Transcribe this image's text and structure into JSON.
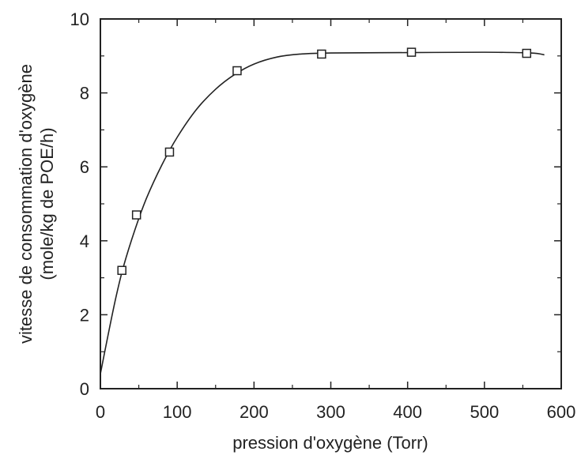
{
  "chart_data": {
    "type": "scatter",
    "title": "",
    "xlabel": "pression d'oxygène (Torr)",
    "ylabel_line1": "vitesse de consommation d'oxygène",
    "ylabel_line2": "(mole/kg de POE/h)",
    "xlim": [
      0,
      600
    ],
    "ylim": [
      0,
      10
    ],
    "x_ticks": [
      0,
      100,
      200,
      300,
      400,
      500,
      600
    ],
    "y_ticks": [
      0,
      2,
      4,
      6,
      8,
      10
    ],
    "grid": false,
    "legend": "none",
    "series": [
      {
        "marker": "open-square",
        "points": [
          {
            "x": 28,
            "y": 3.2
          },
          {
            "x": 47,
            "y": 4.7
          },
          {
            "x": 90,
            "y": 6.4
          },
          {
            "x": 178,
            "y": 8.6
          },
          {
            "x": 288,
            "y": 9.05
          },
          {
            "x": 405,
            "y": 9.1
          },
          {
            "x": 555,
            "y": 9.07
          }
        ]
      }
    ],
    "fit_curve": {
      "points": [
        {
          "x": 0,
          "y": 0.4
        },
        {
          "x": 10,
          "y": 1.45
        },
        {
          "x": 20,
          "y": 2.45
        },
        {
          "x": 30,
          "y": 3.3
        },
        {
          "x": 45,
          "y": 4.3
        },
        {
          "x": 60,
          "y": 5.15
        },
        {
          "x": 80,
          "y": 6.05
        },
        {
          "x": 100,
          "y": 6.8
        },
        {
          "x": 125,
          "y": 7.55
        },
        {
          "x": 150,
          "y": 8.1
        },
        {
          "x": 175,
          "y": 8.5
        },
        {
          "x": 200,
          "y": 8.78
        },
        {
          "x": 230,
          "y": 8.97
        },
        {
          "x": 260,
          "y": 9.05
        },
        {
          "x": 300,
          "y": 9.08
        },
        {
          "x": 400,
          "y": 9.09
        },
        {
          "x": 500,
          "y": 9.1
        },
        {
          "x": 560,
          "y": 9.08
        },
        {
          "x": 578,
          "y": 9.03
        }
      ]
    },
    "colors": {
      "ink": "#222222"
    }
  }
}
